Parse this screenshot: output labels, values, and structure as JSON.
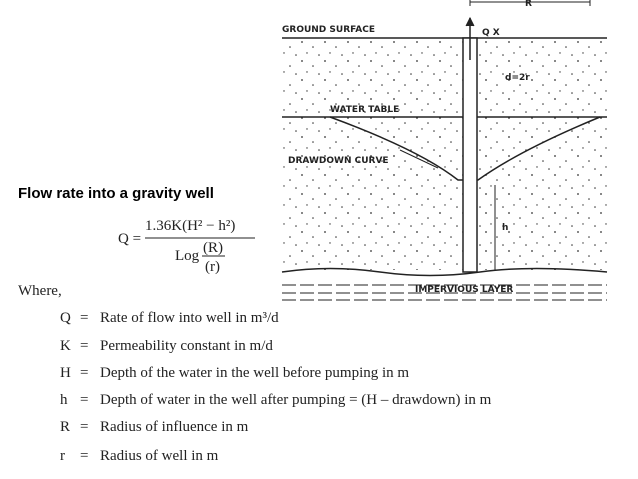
{
  "title": "Flow rate into a gravity well",
  "formula": {
    "lhs": "Q =",
    "numerator": "1.36K(H² − h²)",
    "log": "Log",
    "R": "(R)",
    "r": "(r)"
  },
  "where": "Where,",
  "equals": "=",
  "definitions": [
    {
      "symbol": "Q",
      "text": "Rate of flow into well in m³/d"
    },
    {
      "symbol": "K",
      "text": "Permeability constant in m/d"
    },
    {
      "symbol": "H",
      "text": "Depth of the water in the well before pumping in m"
    },
    {
      "symbol": "h",
      "text": "Depth of water in the well after pumping = (H – drawdown) in m"
    },
    {
      "symbol": "R",
      "text": "Radius of influence in m"
    },
    {
      "symbol": "r",
      "text": "Radius of well in m"
    }
  ],
  "diagram": {
    "ground": "GROUND SURFACE",
    "q": "Q X",
    "radius": "R",
    "diameter": "d=2r",
    "water_table": "WATER TABLE",
    "drawdown": "DRAWDOWN CURVE",
    "h": "h",
    "impervious": "IMPERVIOUS LAYER"
  }
}
